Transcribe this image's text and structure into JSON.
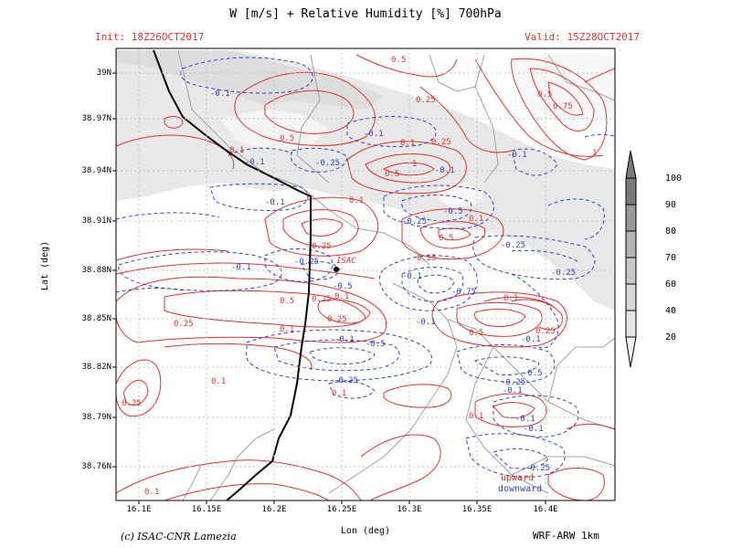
{
  "title": "W [m/s] + Relative Humidity [%] 700hPa",
  "init": "Init: 18Z26OCT2017",
  "valid": "Valid: 15Z28OCT2017",
  "axes": {
    "ylabel": "Lat (deg)",
    "xlabel": "Lon (deg)",
    "yticks": [
      "39N",
      "38.97N",
      "38.94N",
      "38.91N",
      "38.88N",
      "38.85N",
      "38.82N",
      "38.79N",
      "38.76N"
    ],
    "xticks": [
      "16.1E",
      "16.15E",
      "16.2E",
      "16.25E",
      "16.3E",
      "16.35E",
      "16.4E"
    ]
  },
  "colorbar": {
    "labels": [
      "100",
      "90",
      "80",
      "70",
      "60",
      "40",
      "20"
    ],
    "colors": [
      "#7a7a7a",
      "#999999",
      "#b3b3b3",
      "#c8c8c8",
      "#d8d8d8",
      "#e6e6e6",
      "#f2f2f2"
    ]
  },
  "legend": {
    "upward": "upward",
    "downward": "downward"
  },
  "station": "ISAC",
  "credit": "(c) ISAC-CNR Lamezia",
  "model": "WRF-ARW 1km",
  "contour_labels": {
    "pos": [
      "0.5",
      "0.25",
      "0.5",
      "0.75",
      "1",
      "0.1",
      "0.5",
      "0.1",
      "0.25",
      "1",
      "0.5",
      "0.1",
      "0.1",
      "0.25",
      "0.5",
      "0.25",
      "0.1",
      "0.25",
      "0.5",
      "0.25",
      "0.1",
      "0.25",
      "0.5",
      "0.1",
      "0.25",
      "0.1",
      "0.25",
      "0.1",
      "0.1",
      "0.1"
    ],
    "neg": [
      "-0.1",
      "-0.1",
      "-0.25",
      "-0.1",
      "-0.1",
      "-0.1",
      "-0.25",
      "-0.5",
      "-0.1",
      "-0.25",
      "-0.1",
      "-0.25",
      "-0.5",
      "-0.1",
      "-0.25",
      "-0.75",
      "-0.1",
      "-0.1",
      "-0.5",
      "-0.1",
      "-0.5",
      "-0.25",
      "-0.1",
      "-0.1",
      "-0.25",
      "-0.1",
      "-0.25"
    ]
  },
  "colors": {
    "upward": "#e0322a",
    "downward": "#2a40d8",
    "coast": "#000000",
    "border": "#999999"
  }
}
